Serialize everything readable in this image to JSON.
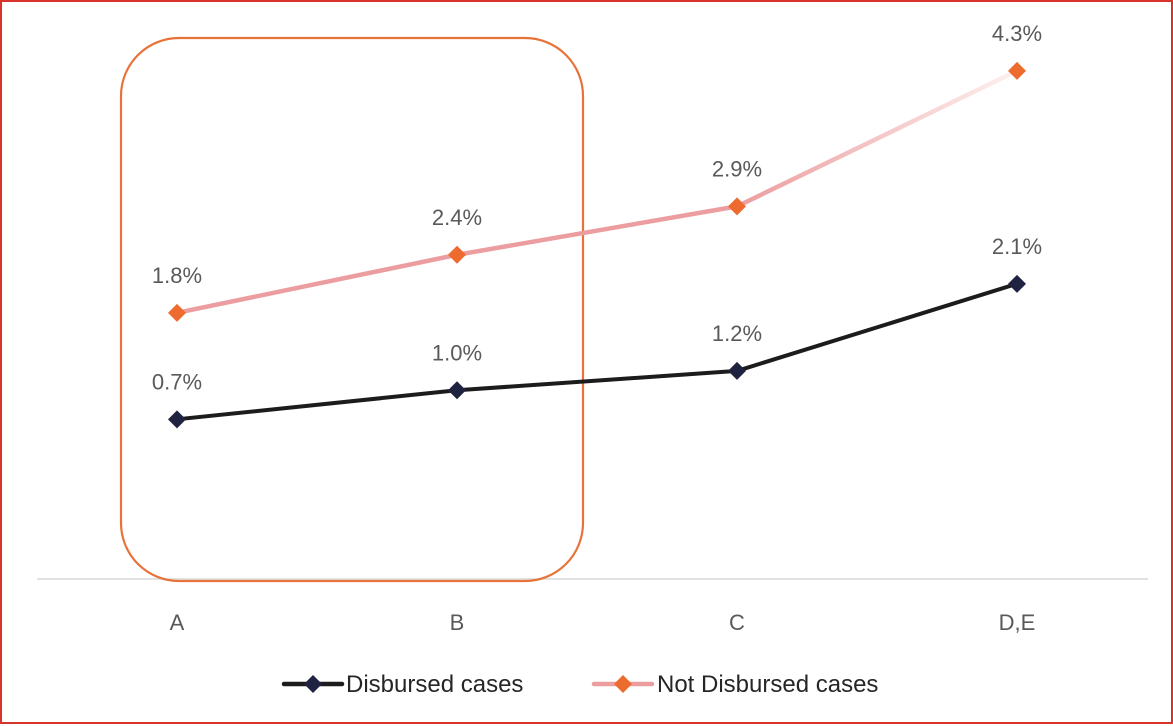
{
  "chart_data": {
    "type": "line",
    "categories": [
      "A",
      "B",
      "C",
      "D,E"
    ],
    "series": [
      {
        "name": "Disbursed cases",
        "values": [
          0.7,
          1.0,
          1.2,
          2.1
        ],
        "labels": [
          "0.7%",
          "1.0%",
          "1.2%",
          "2.1%"
        ],
        "color": "#1c1c1c",
        "marker_color": "#1f2240"
      },
      {
        "name": "Not Disbursed cases",
        "values": [
          1.8,
          2.4,
          2.9,
          4.3
        ],
        "labels": [
          "1.8%",
          "2.4%",
          "2.9%",
          "4.3%"
        ],
        "color": "#ec9d9f",
        "marker_color": "#ed6b2f"
      }
    ],
    "ylim": [
      -0.95,
      4.95
    ],
    "grid": false,
    "legend": "bottom",
    "title": "",
    "xlabel": "",
    "ylabel": ""
  },
  "annotation": {
    "type": "highlight-box",
    "covers": [
      "A",
      "B"
    ],
    "color": "#e8733a"
  },
  "frame_color": "#d9342b"
}
